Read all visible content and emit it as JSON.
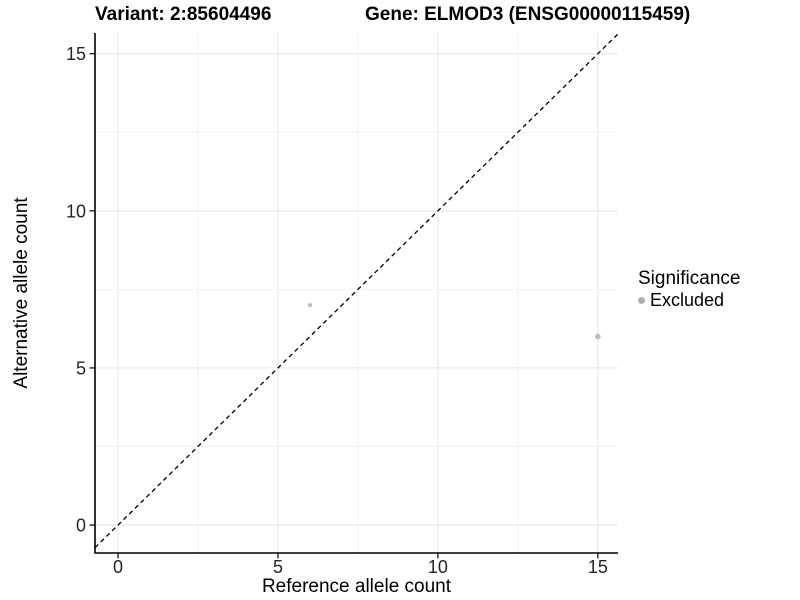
{
  "titles": {
    "left": "Variant: 2:85604496",
    "right": "Gene: ELMOD3 (ENSG00000115459)"
  },
  "chart_data": {
    "type": "scatter",
    "xlabel": "Reference allele count",
    "ylabel": "Alternative allele count",
    "xlim": [
      -0.72,
      15.63
    ],
    "ylim": [
      -0.89,
      15.66
    ],
    "xticks": [
      0,
      5,
      10,
      15
    ],
    "yticks": [
      0,
      5,
      10,
      15
    ],
    "x_minor": [
      2.5,
      7.5,
      12.5
    ],
    "y_minor": [
      2.5,
      7.5,
      12.5
    ],
    "grid": {
      "major_color": "#e6e6e6",
      "minor_color": "#f2f2f2",
      "background": "#ffffff"
    },
    "axis_color": "#000000",
    "tick_color": "#262626",
    "abline": {
      "slope": 1,
      "intercept": 0,
      "color": "#000000",
      "dash": "4.5 3.5",
      "width": 1.3
    },
    "points": [
      {
        "x": 6,
        "y": 7,
        "r": 2.1,
        "color": "#bebebe",
        "significance": "Excluded"
      },
      {
        "x": 15,
        "y": 6,
        "r": 2.8,
        "color": "#bdbdbd",
        "significance": "Excluded"
      }
    ],
    "legend": {
      "title": "Significance",
      "position": "right",
      "items": [
        {
          "label": "Excluded",
          "color": "#b0b0b0"
        }
      ]
    }
  }
}
